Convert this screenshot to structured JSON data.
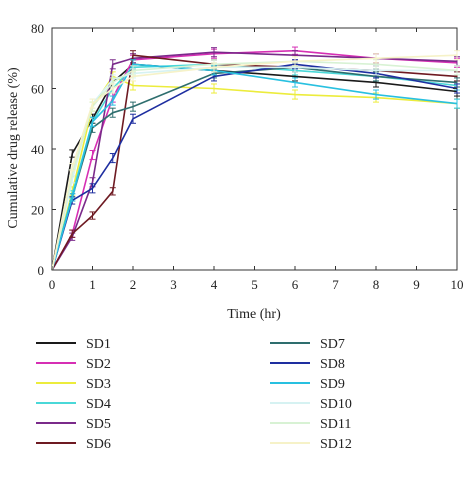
{
  "chart_data": {
    "type": "line",
    "title": "",
    "xlabel": "Time (hr)",
    "ylabel": "Cumulative drug release (%)",
    "xlim": [
      0,
      10
    ],
    "ylim": [
      0,
      80
    ],
    "xticks": [
      0,
      1,
      2,
      3,
      4,
      5,
      6,
      7,
      8,
      9,
      10
    ],
    "yticks": [
      0,
      20,
      40,
      60,
      80
    ],
    "grid": false,
    "legend_position": "bottom",
    "error_bars": true,
    "series": [
      {
        "name": "SD1",
        "color": "#1a1a1a",
        "x": [
          0,
          0.5,
          1,
          1.5,
          2,
          4,
          6,
          8,
          10
        ],
        "y": [
          0,
          38.5,
          50,
          62,
          68,
          66,
          64,
          62,
          59
        ],
        "err": [
          0,
          1.2,
          1.5,
          1.5,
          1.5,
          1.5,
          1.5,
          1.5,
          1.5
        ]
      },
      {
        "name": "SD2",
        "color": "#d62fb4",
        "x": [
          0,
          0.5,
          1,
          1.5,
          2,
          4,
          6,
          8,
          10
        ],
        "y": [
          0,
          12,
          38,
          57,
          69.5,
          71.5,
          72.5,
          70,
          68.5
        ],
        "err": [
          0,
          1.2,
          1.5,
          1.5,
          1.5,
          1.5,
          1.2,
          1.5,
          1.5
        ]
      },
      {
        "name": "SD3",
        "color": "#ecec3c",
        "x": [
          0,
          0.5,
          1,
          1.5,
          2,
          4,
          6,
          8,
          10
        ],
        "y": [
          0,
          26,
          54,
          64,
          61,
          60,
          58,
          57,
          55
        ],
        "err": [
          0,
          1.5,
          1.5,
          1.5,
          1.5,
          1.5,
          1.5,
          1.5,
          1.5
        ]
      },
      {
        "name": "SD4",
        "color": "#4ad8d8",
        "x": [
          0,
          0.5,
          1,
          1.5,
          2,
          4,
          6,
          8,
          10
        ],
        "y": [
          0,
          25,
          49,
          60,
          67,
          68,
          66,
          64,
          61
        ],
        "err": [
          0,
          1.2,
          1.5,
          1.5,
          1.5,
          1.5,
          1.5,
          1.5,
          1.5
        ]
      },
      {
        "name": "SD5",
        "color": "#7a2a8a",
        "x": [
          0,
          0.5,
          1,
          1.5,
          2,
          4,
          6,
          8,
          10
        ],
        "y": [
          0,
          11,
          29,
          68,
          70,
          72,
          71,
          70,
          69
        ],
        "err": [
          0,
          1.2,
          1.5,
          1.5,
          1.5,
          1.5,
          1.5,
          1.5,
          1.5
        ]
      },
      {
        "name": "SD6",
        "color": "#6e1a22",
        "x": [
          0,
          0.5,
          1,
          1.5,
          2,
          4,
          6,
          8,
          10
        ],
        "y": [
          0,
          12,
          18,
          26,
          71,
          68,
          67,
          66,
          64
        ],
        "err": [
          0,
          1.2,
          1.2,
          1.2,
          1.5,
          1.5,
          1.5,
          1.5,
          1.5
        ]
      },
      {
        "name": "SD7",
        "color": "#2e6e6e",
        "x": [
          0,
          0.5,
          1,
          1.5,
          2,
          4,
          6,
          8,
          10
        ],
        "y": [
          0,
          24,
          47,
          52,
          54,
          65,
          67,
          64,
          62
        ],
        "err": [
          0,
          1.2,
          1.5,
          1.5,
          1.5,
          1.5,
          1.5,
          1.5,
          1.5
        ]
      },
      {
        "name": "SD8",
        "color": "#1e2ea0",
        "x": [
          0,
          0.5,
          1,
          1.5,
          2,
          4,
          6,
          8,
          10
        ],
        "y": [
          0,
          23,
          27,
          37,
          50,
          64,
          68,
          65,
          60
        ],
        "err": [
          0,
          1.2,
          1.5,
          1.5,
          1.5,
          1.5,
          1.5,
          1.5,
          1.5
        ]
      },
      {
        "name": "SD9",
        "color": "#28c0e0",
        "x": [
          0,
          0.5,
          1,
          1.5,
          2,
          4,
          6,
          8,
          10
        ],
        "y": [
          0,
          24,
          49,
          56,
          68,
          66,
          62,
          58,
          55
        ],
        "err": [
          0,
          1.2,
          1.5,
          1.5,
          1.5,
          1.5,
          1.5,
          1.5,
          1.5
        ]
      },
      {
        "name": "SD10",
        "color": "#d6f2f2",
        "x": [
          0,
          0.5,
          1,
          1.5,
          2,
          4,
          6,
          8,
          10
        ],
        "y": [
          0,
          30,
          55,
          63,
          65,
          67,
          67,
          66,
          66
        ],
        "err": [
          0,
          1.2,
          1.5,
          1.5,
          1.5,
          1.5,
          1.5,
          1.5,
          1.5
        ]
      },
      {
        "name": "SD11",
        "color": "#d8f2d4",
        "x": [
          0,
          0.5,
          1,
          1.5,
          2,
          4,
          6,
          8,
          10
        ],
        "y": [
          0,
          32,
          54,
          62,
          66,
          68,
          69,
          68,
          66
        ],
        "err": [
          0,
          1.2,
          1.5,
          1.5,
          1.5,
          1.5,
          1.5,
          1.5,
          1.5
        ]
      },
      {
        "name": "SD12",
        "color": "#f6f2c8",
        "x": [
          0,
          0.5,
          1,
          1.5,
          2,
          4,
          6,
          8,
          10
        ],
        "y": [
          0,
          34,
          55,
          60,
          64,
          67,
          69,
          70,
          71
        ],
        "err": [
          0,
          1.2,
          1.5,
          1.5,
          1.5,
          1.5,
          1.5,
          1.5,
          1.5
        ]
      }
    ]
  }
}
